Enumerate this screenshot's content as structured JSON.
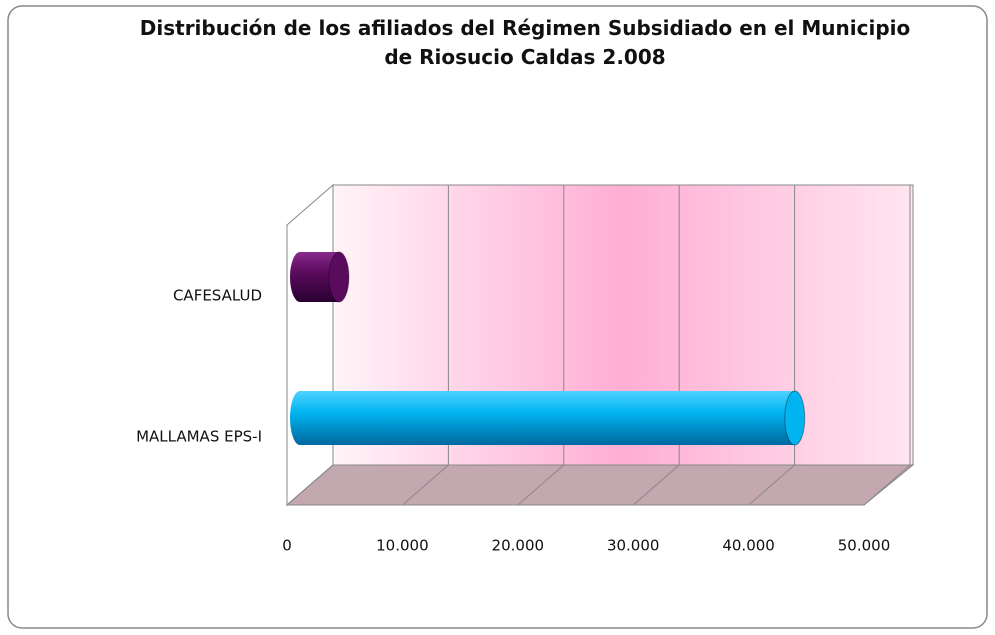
{
  "chart_data": {
    "type": "bar",
    "orientation": "horizontal",
    "title": "Distribución de los afiliados del Régimen Subsidiado en el Municipio de Riosucio Caldas 2.008",
    "categories": [
      "CAFESALUD",
      "MALLAMAS EPS-I"
    ],
    "series": [
      {
        "name": null,
        "colors": [
          "#5b0b5e",
          "#00b4f0"
        ],
        "values": [
          4500,
          44000
        ]
      }
    ],
    "xlim": [
      0,
      50000
    ],
    "xticks": [
      0,
      {
        "value": 10000,
        "label": "10.000"
      },
      {
        "value": 20000,
        "label": "20.000"
      },
      {
        "value": 30000,
        "label": "30.000"
      },
      {
        "value": 40000,
        "label": "40.000"
      },
      {
        "value": 50000,
        "label": "50.000"
      }
    ],
    "grid": true
  }
}
